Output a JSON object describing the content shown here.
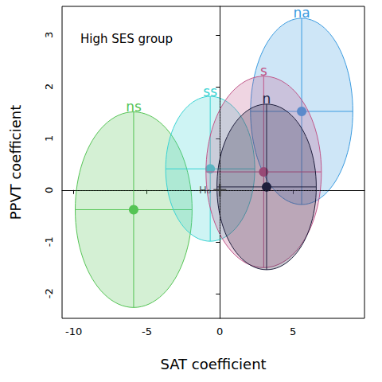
{
  "chart_data": {
    "type": "ellipse",
    "title": "High SES group",
    "x_label": "SAT coefficient",
    "y_label": "PPVT coefficient",
    "xlim": [
      -10.8,
      9.9
    ],
    "ylim": [
      -2.48,
      3.55
    ],
    "xticks": [
      -10,
      -5,
      0,
      5
    ],
    "yticks": [
      -2,
      -1,
      0,
      1,
      2,
      3
    ],
    "grid": false,
    "h0": {
      "label": "H₀",
      "x": 0,
      "y": 0
    },
    "series": [
      {
        "name": "ns",
        "color": "#55c455",
        "x": -5.9,
        "y": -0.38,
        "x_halfwidth": 4.0,
        "y_halfheight": 1.89
      },
      {
        "name": "ss",
        "color": "#3ad3d3",
        "x": -0.66,
        "y": 0.41,
        "x_halfwidth": 3.05,
        "y_halfheight": 1.4
      },
      {
        "name": "na",
        "color": "#3a9be0",
        "x": 5.6,
        "y": 1.52,
        "x_halfwidth": 3.5,
        "y_halfheight": 1.8
      },
      {
        "name": "s",
        "color": "#c0578a",
        "x": 3.0,
        "y": 0.35,
        "x_halfwidth": 3.95,
        "y_halfheight": 1.85
      },
      {
        "name": "n",
        "color": "#1e1e3c",
        "x": 3.2,
        "y": 0.06,
        "x_halfwidth": 3.4,
        "y_halfheight": 1.6
      }
    ]
  }
}
